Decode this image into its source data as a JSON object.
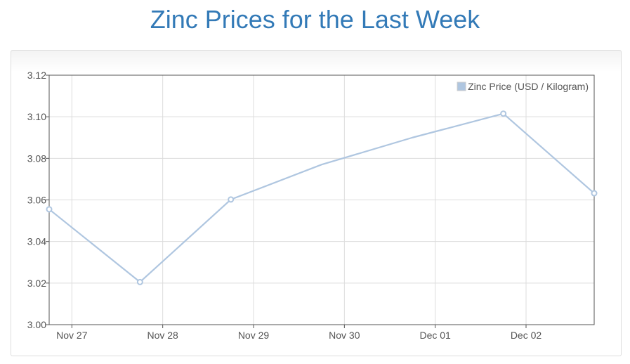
{
  "page": {
    "title": "Zinc Prices for the Last Week"
  },
  "chart_data": {
    "type": "line",
    "title": "",
    "xlabel": "",
    "ylabel": "",
    "x_tick_labels": [
      "Nov 27",
      "Nov 28",
      "Nov 29",
      "Nov 30",
      "Dec 01",
      "Dec 02"
    ],
    "y_tick_labels": [
      "3.00",
      "3.02",
      "3.04",
      "3.06",
      "3.08",
      "3.10",
      "3.12"
    ],
    "ylim": [
      3.0,
      3.12
    ],
    "xlim_days": [
      26.75,
      32.75
    ],
    "grid": true,
    "legend_position": "top-right",
    "series": [
      {
        "name": "Zinc Price (USD / Kilogram)",
        "color": "#afc6e0",
        "points": [
          {
            "date": "Nov 26",
            "x_day": 26.75,
            "value": 3.0555
          },
          {
            "date": "Nov 27",
            "x_day": 27.75,
            "value": 3.0205
          },
          {
            "date": "Nov 28",
            "x_day": 28.75,
            "value": 3.0602
          },
          {
            "date": "Nov 29",
            "x_day": 29.75,
            "value": 3.077
          },
          {
            "date": "Nov 30",
            "x_day": 30.75,
            "value": 3.09
          },
          {
            "date": "Dec 01",
            "x_day": 31.75,
            "value": 3.1015
          },
          {
            "date": "Dec 02",
            "x_day": 32.75,
            "value": 3.0632
          }
        ]
      }
    ]
  }
}
